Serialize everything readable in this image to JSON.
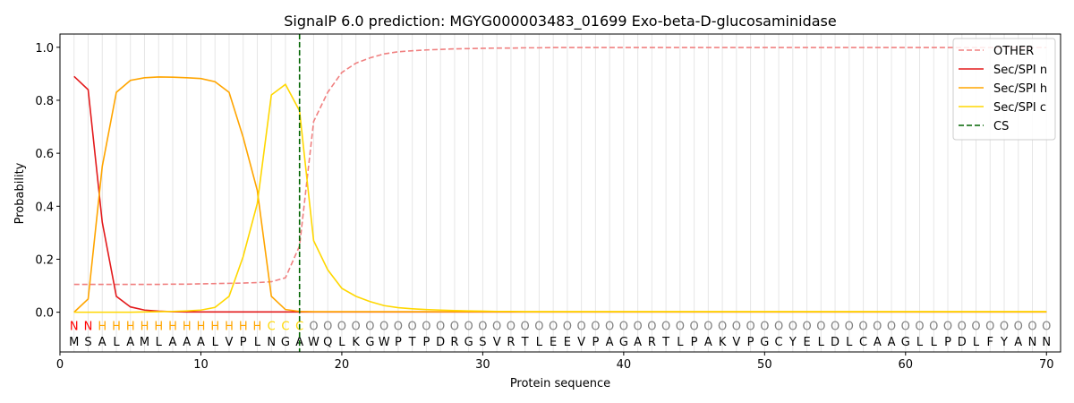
{
  "chart_data": {
    "type": "line",
    "title": "SignalP 6.0 prediction: MGYG000003483_01699 Exo-beta-D-glucosaminidase",
    "xlabel": "Protein sequence",
    "ylabel": "Probability",
    "xlim": [
      0,
      71
    ],
    "ylim": [
      -0.15,
      1.05
    ],
    "xticks": [
      0,
      10,
      20,
      30,
      40,
      50,
      60,
      70
    ],
    "yticks": [
      0.0,
      0.2,
      0.4,
      0.6,
      0.8,
      1.0
    ],
    "xtick_labels": [
      "0",
      "10",
      "20",
      "30",
      "40",
      "50",
      "60",
      "70"
    ],
    "ytick_labels": [
      "0.0",
      "0.2",
      "0.4",
      "0.6",
      "0.8",
      "1.0"
    ],
    "grid": "vertical lines at each residue",
    "legend_position": "upper right",
    "sequence": [
      "M",
      "S",
      "A",
      "L",
      "A",
      "M",
      "L",
      "A",
      "A",
      "A",
      "L",
      "V",
      "P",
      "L",
      "N",
      "G",
      "A",
      "W",
      "Q",
      "L",
      "K",
      "G",
      "W",
      "P",
      "T",
      "P",
      "D",
      "R",
      "G",
      "S",
      "V",
      "R",
      "T",
      "L",
      "E",
      "E",
      "V",
      "P",
      "A",
      "G",
      "A",
      "R",
      "T",
      "L",
      "P",
      "A",
      "K",
      "V",
      "P",
      "G",
      "C",
      "Y",
      "E",
      "L",
      "D",
      "L",
      "C",
      "A",
      "A",
      "G",
      "L",
      "L",
      "P",
      "D",
      "L",
      "F",
      "Y",
      "A",
      "N",
      "N"
    ],
    "labels": [
      "N",
      "N",
      "H",
      "H",
      "H",
      "H",
      "H",
      "H",
      "H",
      "H",
      "H",
      "H",
      "H",
      "H",
      "C",
      "C",
      "C",
      "O",
      "O",
      "O",
      "O",
      "O",
      "O",
      "O",
      "O",
      "O",
      "O",
      "O",
      "O",
      "O",
      "O",
      "O",
      "O",
      "O",
      "O",
      "O",
      "O",
      "O",
      "O",
      "O",
      "O",
      "O",
      "O",
      "O",
      "O",
      "O",
      "O",
      "O",
      "O",
      "O",
      "O",
      "O",
      "O",
      "O",
      "O",
      "O",
      "O",
      "O",
      "O",
      "O",
      "O",
      "O",
      "O",
      "O",
      "O",
      "O",
      "O",
      "O",
      "O",
      "O"
    ],
    "label_colors": {
      "N": "#ff0000",
      "H": "#ffa500",
      "C": "#ffd700",
      "O": "#808080"
    },
    "cleavage_site": 17,
    "series": [
      {
        "name": "OTHER",
        "color": "#f08080",
        "style": "dashed",
        "values": [
          0.105,
          0.105,
          0.105,
          0.105,
          0.105,
          0.105,
          0.105,
          0.106,
          0.106,
          0.107,
          0.108,
          0.109,
          0.11,
          0.112,
          0.115,
          0.13,
          0.25,
          0.72,
          0.83,
          0.905,
          0.94,
          0.96,
          0.975,
          0.983,
          0.987,
          0.99,
          0.992,
          0.994,
          0.995,
          0.996,
          0.997,
          0.997,
          0.998,
          0.998,
          0.999,
          0.999,
          0.999,
          0.999,
          0.999,
          0.999,
          0.999,
          0.999,
          0.999,
          0.999,
          0.999,
          0.999,
          0.999,
          0.999,
          0.999,
          0.999,
          0.999,
          0.999,
          0.999,
          0.999,
          0.999,
          0.999,
          0.999,
          0.999,
          0.999,
          0.999,
          0.999,
          0.999,
          0.999,
          0.999,
          0.999,
          0.999,
          0.999,
          0.999,
          0.999,
          0.999
        ]
      },
      {
        "name": "Sec/SPI n",
        "color": "#e31a1c",
        "style": "solid",
        "values": [
          0.89,
          0.84,
          0.34,
          0.06,
          0.02,
          0.008,
          0.004,
          0.002,
          0.001,
          0.001,
          0.001,
          0.001,
          0.001,
          0.001,
          0.001,
          0.001,
          0.001,
          0.001,
          0.001,
          0.001,
          0.001,
          0.001,
          0.001,
          0.001,
          0.001,
          0.001,
          0.001,
          0.001,
          0.001,
          0.001,
          0.001,
          0.001,
          0.001,
          0.001,
          0.001,
          0.001,
          0.001,
          0.001,
          0.001,
          0.001,
          0.001,
          0.001,
          0.001,
          0.001,
          0.001,
          0.001,
          0.001,
          0.001,
          0.001,
          0.001,
          0.001,
          0.001,
          0.001,
          0.001,
          0.001,
          0.001,
          0.001,
          0.001,
          0.001,
          0.001,
          0.001,
          0.001,
          0.001,
          0.001,
          0.001,
          0.001,
          0.001,
          0.001,
          0.001,
          0.001
        ]
      },
      {
        "name": "Sec/SPI h",
        "color": "#ffa500",
        "style": "solid",
        "values": [
          0.0,
          0.05,
          0.55,
          0.83,
          0.875,
          0.885,
          0.888,
          0.887,
          0.885,
          0.882,
          0.87,
          0.83,
          0.66,
          0.46,
          0.06,
          0.01,
          0.003,
          0.002,
          0.002,
          0.002,
          0.002,
          0.002,
          0.002,
          0.002,
          0.002,
          0.002,
          0.002,
          0.002,
          0.002,
          0.002,
          0.002,
          0.002,
          0.002,
          0.002,
          0.002,
          0.002,
          0.002,
          0.002,
          0.002,
          0.002,
          0.002,
          0.002,
          0.002,
          0.002,
          0.002,
          0.002,
          0.002,
          0.002,
          0.002,
          0.002,
          0.002,
          0.002,
          0.002,
          0.002,
          0.002,
          0.002,
          0.002,
          0.002,
          0.002,
          0.002,
          0.002,
          0.002,
          0.002,
          0.002,
          0.002,
          0.002,
          0.002,
          0.002,
          0.002,
          0.002
        ]
      },
      {
        "name": "Sec/SPI c",
        "color": "#ffd700",
        "style": "solid",
        "values": [
          0.0,
          0.0,
          0.0,
          0.0,
          0.0,
          0.001,
          0.002,
          0.003,
          0.005,
          0.008,
          0.018,
          0.06,
          0.21,
          0.41,
          0.82,
          0.86,
          0.76,
          0.27,
          0.16,
          0.09,
          0.06,
          0.04,
          0.025,
          0.017,
          0.013,
          0.01,
          0.008,
          0.006,
          0.005,
          0.004,
          0.003,
          0.003,
          0.002,
          0.002,
          0.002,
          0.002,
          0.002,
          0.002,
          0.002,
          0.002,
          0.002,
          0.002,
          0.002,
          0.002,
          0.002,
          0.002,
          0.002,
          0.002,
          0.002,
          0.002,
          0.002,
          0.002,
          0.002,
          0.002,
          0.002,
          0.002,
          0.002,
          0.002,
          0.002,
          0.002,
          0.002,
          0.002,
          0.002,
          0.002,
          0.002,
          0.002,
          0.002,
          0.002,
          0.002,
          0.002
        ]
      }
    ],
    "cs_legend": {
      "name": "CS",
      "color": "#006400",
      "style": "dashed"
    }
  }
}
